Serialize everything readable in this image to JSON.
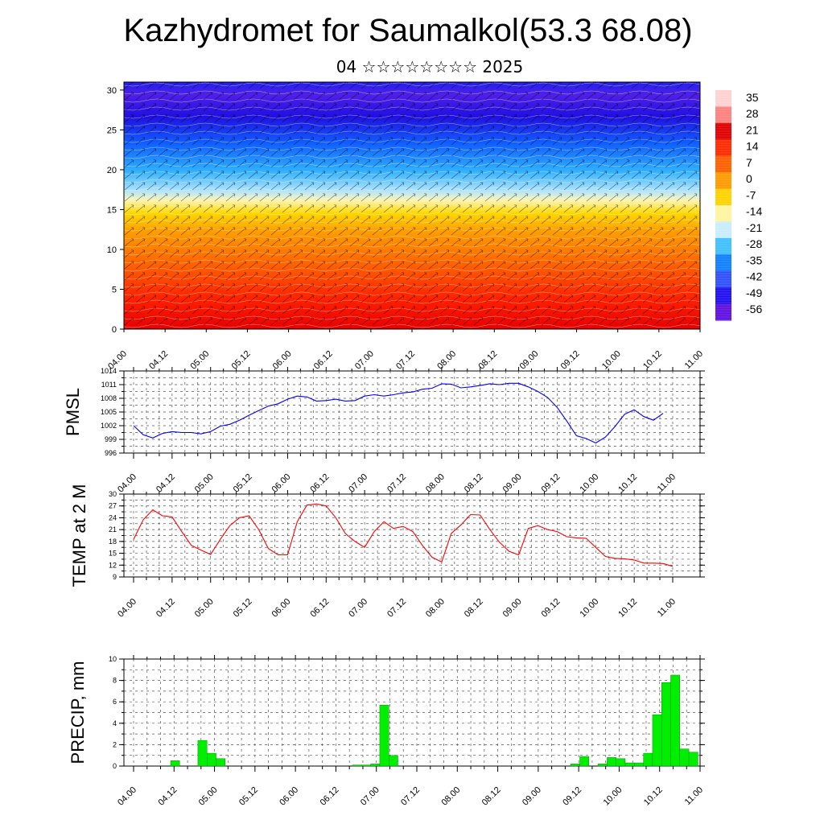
{
  "title": "Kazhydromet for Saumalkol(53.3 68.08)",
  "subtitle": "04 ☆☆☆☆☆☆☆☆ 2025",
  "colors": {
    "pmsl": "#0000ff",
    "temp": "#ff0000",
    "precip": "#00ee00",
    "precip_edge": "#007700"
  },
  "chart_data": [
    {
      "type": "heatmap",
      "name": "section",
      "x_ticks": [
        "04.00",
        "04.12",
        "05.00",
        "05.12",
        "06.00",
        "06.12",
        "07.00",
        "07.12",
        "08.00",
        "08.12",
        "09.00",
        "09.12",
        "10.00",
        "10.12",
        "11.00"
      ],
      "y_ticks": [
        0,
        5,
        10,
        15,
        20,
        25,
        30
      ],
      "ylim": [
        0,
        31
      ],
      "colorbar_labels": [
        "35",
        "28",
        "21",
        "14",
        "7",
        "0",
        "-7",
        "-14",
        "-21",
        "-28",
        "-35",
        "-42",
        "-49",
        "-56"
      ],
      "colorbar_colors": [
        "#ffd0d0",
        "#ff8080",
        "#e00000",
        "#ff2a00",
        "#ff6000",
        "#ff9a00",
        "#ffd200",
        "#fff4a0",
        "#c8ecff",
        "#40c0ff",
        "#1080ff",
        "#3050ff",
        "#2010f0",
        "#6010e0"
      ]
    },
    {
      "type": "line",
      "name": "pmsl",
      "ylabel": "PMSL",
      "ylim": [
        996,
        1014
      ],
      "y_ticks": [
        996,
        999,
        1002,
        1005,
        1008,
        1011,
        1014
      ],
      "x_ticks": [
        "04.00",
        "04.12",
        "05.00",
        "05.12",
        "06.00",
        "06.12",
        "07.00",
        "07.12",
        "08.00",
        "08.12",
        "09.00",
        "09.12",
        "10.00",
        "10.12",
        "11.00"
      ],
      "x": [
        0,
        3,
        6,
        9,
        12,
        15,
        18,
        21,
        24,
        27,
        30,
        33,
        36,
        39,
        42,
        45,
        48,
        51,
        54,
        57,
        60,
        63,
        66,
        69,
        72,
        75,
        78,
        81,
        84,
        87,
        90,
        93,
        96,
        99,
        102,
        105,
        108,
        111,
        114,
        117,
        120,
        123,
        126,
        129,
        132,
        135,
        138,
        141,
        144,
        147,
        150,
        153,
        156,
        159,
        162,
        165,
        168
      ],
      "y": [
        1002,
        1000,
        999.3,
        1000.3,
        1000.7,
        1000.5,
        1000.5,
        1000.2,
        1000.7,
        1001.9,
        1002.3,
        1003.2,
        1004.3,
        1005.3,
        1006.3,
        1006.8,
        1007.8,
        1008.5,
        1008.3,
        1007.4,
        1007.5,
        1007.8,
        1007.4,
        1007.5,
        1008.5,
        1008.8,
        1008.5,
        1008.8,
        1009.2,
        1009.4,
        1010,
        1010.2,
        1011.2,
        1011.1,
        1010.3,
        1010.5,
        1010.8,
        1011.2,
        1011,
        1011.3,
        1011.3,
        1010.5,
        1009.5,
        1008.2,
        1006,
        1003,
        999.8,
        999.2,
        998.2,
        999.5,
        1001.8,
        1004.5,
        1005.5,
        1004,
        1003.2,
        1004.7,
        null
      ]
    },
    {
      "type": "line",
      "name": "temp",
      "ylabel": "TEMP at 2 M",
      "ylim": [
        9,
        30
      ],
      "y_ticks": [
        9,
        12,
        15,
        18,
        21,
        24,
        27,
        30
      ],
      "x_ticks": [
        "04.00",
        "04.12",
        "05.00",
        "05.12",
        "06.00",
        "06.12",
        "07.00",
        "07.12",
        "08.00",
        "08.12",
        "09.00",
        "09.12",
        "10.00",
        "10.12",
        "11.00"
      ],
      "x": [
        0,
        3,
        6,
        9,
        12,
        15,
        18,
        21,
        24,
        27,
        30,
        33,
        36,
        39,
        42,
        45,
        48,
        51,
        54,
        57,
        60,
        63,
        66,
        69,
        72,
        75,
        78,
        81,
        84,
        87,
        90,
        93,
        96,
        99,
        102,
        105,
        108,
        111,
        114,
        117,
        120,
        123,
        126,
        129,
        132,
        135,
        138,
        141,
        144,
        147,
        150,
        153,
        156,
        159,
        162,
        165,
        168
      ],
      "y": [
        18.5,
        23.5,
        26,
        24.5,
        24.2,
        20.5,
        17,
        15.8,
        14.7,
        18.5,
        22,
        24,
        24.5,
        21,
        16.2,
        14.6,
        14.6,
        23,
        27.2,
        27.5,
        27,
        24,
        20,
        18,
        16.5,
        20.5,
        23,
        21.3,
        21.8,
        20.5,
        17,
        14,
        12.8,
        20,
        22.2,
        24.8,
        24.7,
        21,
        17.8,
        15.5,
        14.6,
        21.3,
        22,
        21,
        20.5,
        19.2,
        18.9,
        18.8,
        16.5,
        14.2,
        13.7,
        13.6,
        13.3,
        12.5,
        12.5,
        12.4,
        11.7
      ]
    },
    {
      "type": "bar",
      "name": "precip",
      "ylabel": "PRECIP, mm",
      "ylim": [
        0,
        10
      ],
      "y_ticks": [
        0,
        2,
        4,
        6,
        8,
        10
      ],
      "x_ticks": [
        "04.00",
        "04.12",
        "05.00",
        "05.12",
        "06.00",
        "06.12",
        "07.00",
        "07.12",
        "08.00",
        "08.12",
        "09.00",
        "09.12",
        "10.00",
        "10.12",
        "11.00"
      ],
      "values": [
        0,
        0,
        0,
        0,
        0,
        0.5,
        0,
        0,
        2.4,
        1.2,
        0.7,
        0,
        0,
        0,
        0,
        0,
        0,
        0,
        0,
        0,
        0,
        0,
        0,
        0,
        0,
        0.1,
        0.1,
        0.2,
        5.7,
        1,
        0,
        0,
        0,
        0,
        0,
        0,
        0,
        0,
        0,
        0,
        0,
        0,
        0,
        0,
        0,
        0,
        0,
        0,
        0,
        0.2,
        0.9,
        0,
        0.2,
        0.8,
        0.7,
        0.3,
        0.3,
        1.2,
        4.8,
        7.8,
        8.5,
        1.6,
        1.3
      ]
    }
  ]
}
